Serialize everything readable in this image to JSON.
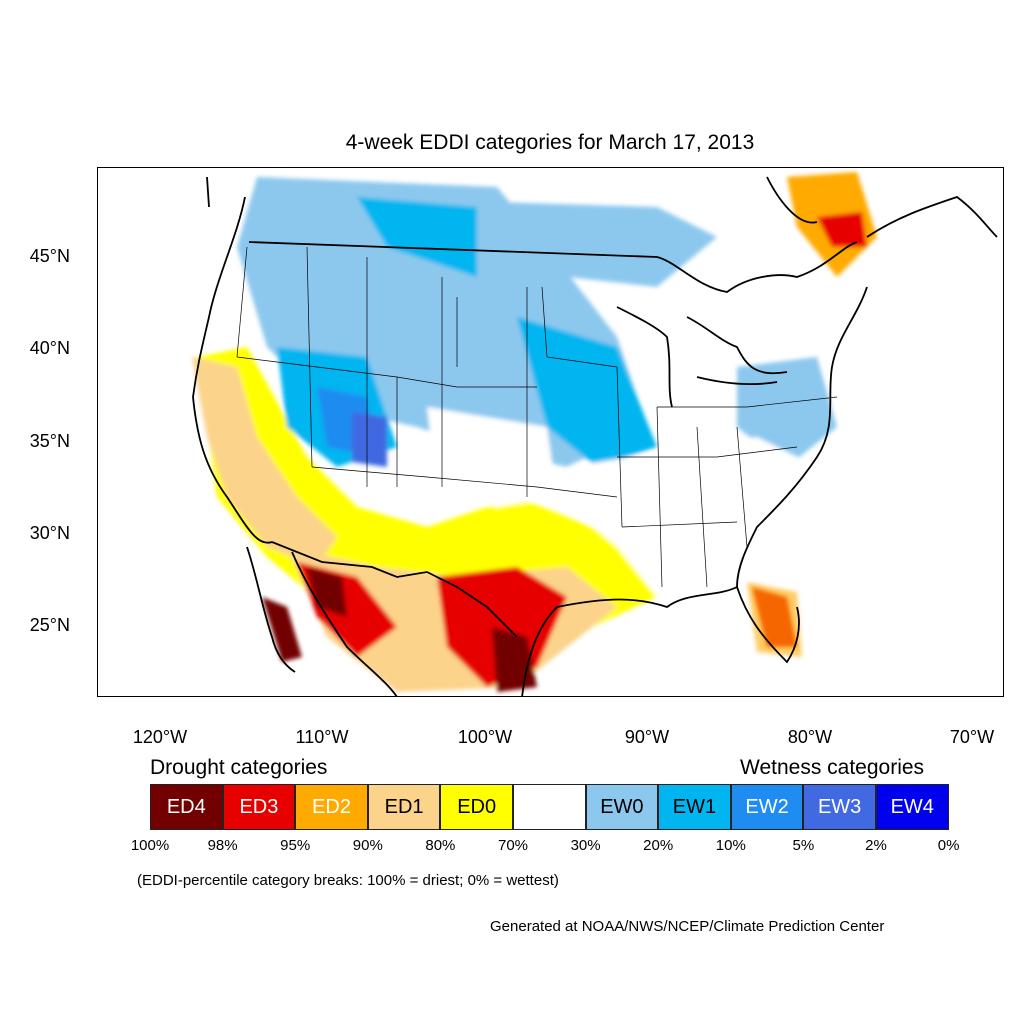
{
  "title": "4-week EDDI categories for March 17, 2013",
  "lat_ticks": [
    "45°N",
    "40°N",
    "35°N",
    "30°N",
    "25°N"
  ],
  "lon_ticks": [
    "120°W",
    "110°W",
    "100°W",
    "90°W",
    "80°W",
    "70°W"
  ],
  "legend": {
    "drought_heading": "Drought categories",
    "wetness_heading": "Wetness categories",
    "categories": [
      {
        "label": "ED4",
        "color": "#730000",
        "text_color": "#ffffff"
      },
      {
        "label": "ED3",
        "color": "#e60000",
        "text_color": "#ffffff"
      },
      {
        "label": "ED2",
        "color": "#ffaa00",
        "text_color": "#ffffff"
      },
      {
        "label": "ED1",
        "color": "#fcd38a",
        "text_color": "#000000"
      },
      {
        "label": "ED0",
        "color": "#ffff00",
        "text_color": "#000000"
      },
      {
        "label": "",
        "color": "#ffffff",
        "text_color": "#000000"
      },
      {
        "label": "EW0",
        "color": "#8cc8ee",
        "text_color": "#000000"
      },
      {
        "label": "EW1",
        "color": "#00b5f0",
        "text_color": "#000000"
      },
      {
        "label": "EW2",
        "color": "#1e8cf0",
        "text_color": "#ffffff"
      },
      {
        "label": "EW3",
        "color": "#4169e1",
        "text_color": "#ffffff"
      },
      {
        "label": "EW4",
        "color": "#0000ee",
        "text_color": "#ffffff"
      }
    ],
    "percent_breaks": [
      "100%",
      "98%",
      "95%",
      "90%",
      "80%",
      "70%",
      "30%",
      "20%",
      "10%",
      "5%",
      "2%",
      "0%"
    ],
    "note": "(EDDI-percentile category breaks: 100% = driest; 0% = wettest)"
  },
  "credit": "Generated at NOAA/NWS/NCEP/Climate Prediction Center"
}
